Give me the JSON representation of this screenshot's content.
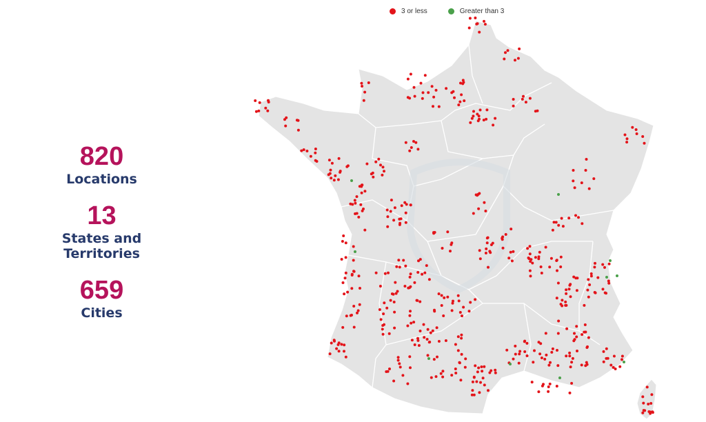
{
  "stats": [
    {
      "value": "820",
      "label": "Locations"
    },
    {
      "value": "13",
      "label": "States and Territories"
    },
    {
      "value": "659",
      "label": "Cities"
    }
  ],
  "legend": [
    {
      "label": "3 or less",
      "color": "#e3141a"
    },
    {
      "label": "Greater than 3",
      "color": "#4aa04a"
    }
  ],
  "map": {
    "land_color": "#e4e4e4",
    "border_color": "#ffffff",
    "watermark_color": "#d7dde3"
  }
}
